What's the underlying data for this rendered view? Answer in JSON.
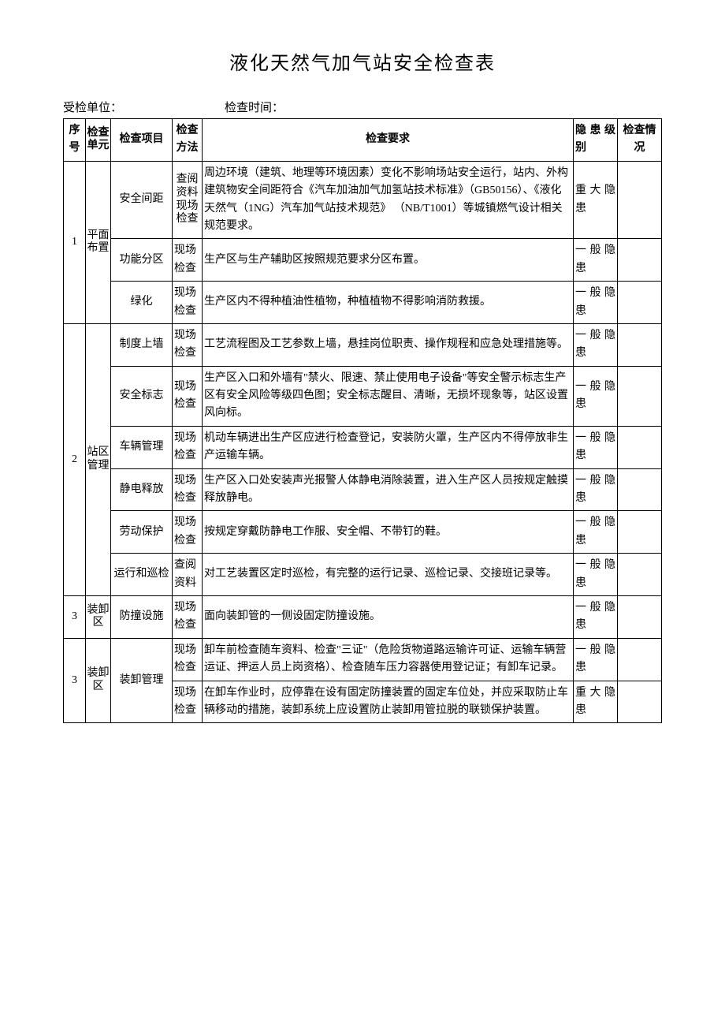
{
  "title": "液化天然气加气站安全检查表",
  "meta": {
    "unit_label": "受检单位：",
    "time_label": "检查时间："
  },
  "headers": {
    "seq": "序号",
    "unit": "检查单元",
    "item": "检查项目",
    "method": "检查方法",
    "req": "检查要求",
    "level": "隐患级别",
    "status": "检查情况"
  },
  "levels": {
    "major": "重大隐患",
    "general": "一般隐患"
  },
  "rows": [
    {
      "seq": "1",
      "unit": "平面布置",
      "items": [
        {
          "item": "安全间距",
          "method": "查阅资料现场检查",
          "method_vertical": true,
          "req": "周边环境（建筑、地理等环境因素）变化不影响场站安全运行，站内、外构建筑物安全间距符合《汽车加油加气加氢站技术标准》（GB50156）、《液化天然气（1NG）汽车加气站技术规范》\n（NB/T1001）等城镇燃气设计相关规范要求。",
          "level": "major"
        },
        {
          "item": "功能分区",
          "method": "现场检查",
          "req": "生产区与生产辅助区按照规范要求分区布置。",
          "level": "general"
        },
        {
          "item": "绿化",
          "method": "现场检查",
          "req": "生产区内不得种植油性植物，种植植物不得影响消防救援。",
          "level": "general"
        }
      ]
    },
    {
      "seq": "2",
      "unit": "站区管理",
      "items": [
        {
          "item": "制度上墙",
          "method": "现场检查",
          "req": "工艺流程图及工艺参数上墙，悬挂岗位职责、操作规程和应急处理措施等。",
          "level": "general"
        },
        {
          "item": "安全标志",
          "method": "现场检查",
          "req": "生产区入口和外墙有\"禁火、限速、禁止使用电子设备\"等安全警示标志生产区有安全风险等级四色图；安全标志醒目、清晰，无损坏现象等，站区设置风向标。",
          "level": "general"
        },
        {
          "item": "车辆管理",
          "method": "现场检查",
          "req": "机动车辆进出生产区应进行检查登记，安装防火罩，生产区内不得停放非生产运输车辆。",
          "level": "general"
        },
        {
          "item": "静电释放",
          "method": "现场检查",
          "req": "生产区入口处安装声光报警人体静电消除装置，进入生产区人员按规定触摸释放静电。",
          "level": "general"
        },
        {
          "item": "劳动保护",
          "method": "现场检查",
          "req": "按规定穿戴防静电工作服、安全帽、不带钉的鞋。",
          "level": "general"
        },
        {
          "item": "运行和巡检",
          "method": "查阅资料",
          "req": "对工艺装置区定时巡检，有完整的运行记录、巡检记录、交接班记录等。",
          "level": "general"
        }
      ]
    },
    {
      "seq": "3",
      "unit": "装卸区",
      "items": [
        {
          "item": "防撞设施",
          "method": "现场检查",
          "req": "面向装卸管的一侧设固定防撞设施。",
          "level": "general"
        }
      ]
    },
    {
      "seq": "3",
      "unit": "装卸区",
      "items": [
        {
          "item": "装卸管理",
          "item_rowspan": 2,
          "method": "现场检查",
          "req": "卸车前检查随车资料、检查\"三证\"（危险货物道路运输许可证、运输车辆营运证、押运人员上岗资格）、检查随车压力容器使用登记证；有卸车记录。",
          "level": "general"
        },
        {
          "method": "现场检查",
          "req": "在卸车作业时，应停靠在设有固定防撞装置的固定车位处，并应采取防止车辆移动的措施，装卸系统上应设置防止装卸用管拉脱的联锁保护装置。",
          "level": "major"
        }
      ]
    }
  ],
  "styling": {
    "page_bg": "#ffffff",
    "text_color": "#000000",
    "border_color": "#000000",
    "title_fontsize": 24,
    "body_fontsize": 14,
    "font_family": "SimSun"
  }
}
